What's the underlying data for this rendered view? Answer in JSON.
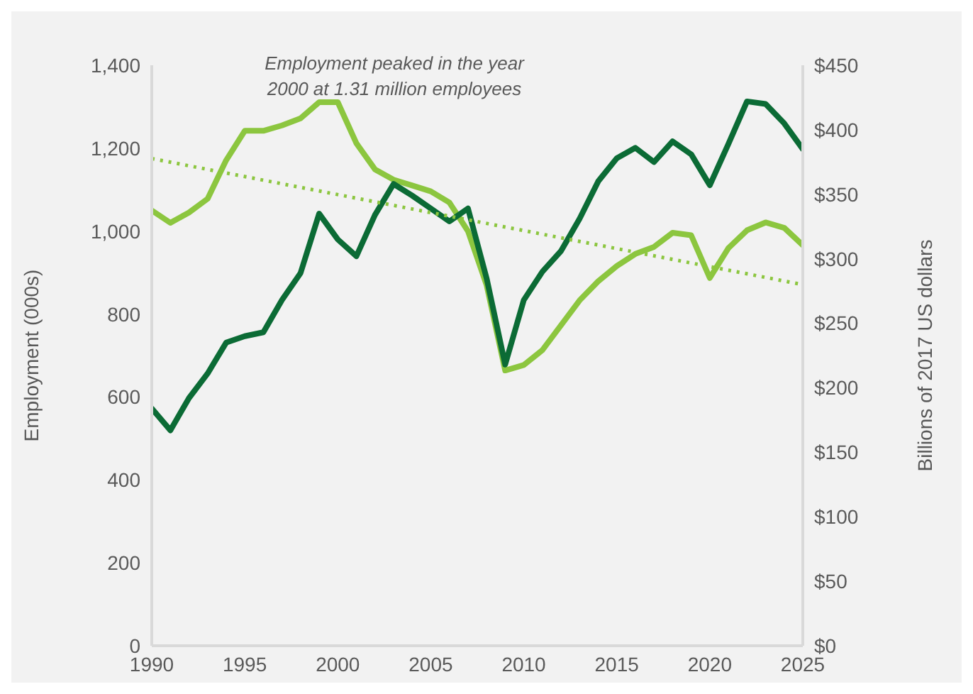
{
  "chart_data": {
    "type": "line",
    "ylabel": "Employment (000s)",
    "y2label": "Billions of 2017 US dollars",
    "annotations": [
      "Employment peaked in the year 2000 at 1.31 million employees"
    ],
    "x": [
      1990,
      1991,
      1992,
      1993,
      1994,
      1995,
      1996,
      1997,
      1998,
      1999,
      2000,
      2001,
      2002,
      2003,
      2004,
      2005,
      2006,
      2007,
      2008,
      2009,
      2010,
      2011,
      2012,
      2013,
      2014,
      2015,
      2016,
      2017,
      2018,
      2019,
      2020,
      2021,
      2022,
      2023,
      2024,
      2025
    ],
    "series": [
      {
        "color": "#8cc63f",
        "values": [
          1050,
          1020,
          1045,
          1078,
          1171,
          1242,
          1242,
          1255,
          1272,
          1311,
          1311,
          1212,
          1149,
          1124,
          1110,
          1096,
          1069,
          1000,
          870,
          664,
          677,
          713,
          773,
          833,
          879,
          916,
          945,
          962,
          996,
          990,
          887,
          959,
          1002,
          1021,
          1008,
          966
        ]
      },
      {
        "color": "#0b6b35",
        "axis": "y2",
        "values": [
          184,
          167,
          192,
          211,
          235,
          240,
          243,
          268,
          289,
          335,
          315,
          302,
          334,
          358,
          349,
          339,
          329,
          339,
          285,
          218,
          268,
          290,
          306,
          331,
          360,
          378,
          386,
          375,
          391,
          381,
          357,
          389,
          422,
          420,
          405,
          385
        ]
      },
      {
        "type": "line",
        "color": "#8cc63f",
        "line_style": "dotted",
        "x": [
          1990,
          2025
        ],
        "values": [
          1175,
          871
        ]
      }
    ],
    "xlim": [
      1990,
      2025
    ],
    "xticks": [
      1990,
      1995,
      2000,
      2005,
      2010,
      2015,
      2020,
      2025
    ],
    "ylim": [
      0,
      1400
    ],
    "yticks": [
      0,
      200,
      400,
      600,
      800,
      {
        "value": 1000,
        "label": "1,000"
      },
      {
        "value": 1200,
        "label": "1,200"
      },
      {
        "value": 1400,
        "label": "1,400"
      }
    ],
    "y2lim": [
      0,
      450
    ],
    "y2ticks": [
      {
        "value": 0,
        "label": "$0"
      },
      {
        "value": 50,
        "label": "$50"
      },
      {
        "value": 100,
        "label": "$100"
      },
      {
        "value": 150,
        "label": "$150"
      },
      {
        "value": 200,
        "label": "$200"
      },
      {
        "value": 250,
        "label": "$250"
      },
      {
        "value": 300,
        "label": "$300"
      },
      {
        "value": 350,
        "label": "$350"
      },
      {
        "value": 400,
        "label": "$400"
      },
      {
        "value": 450,
        "label": "$450"
      }
    ],
    "grid": false,
    "legend": false,
    "marker": "none"
  }
}
